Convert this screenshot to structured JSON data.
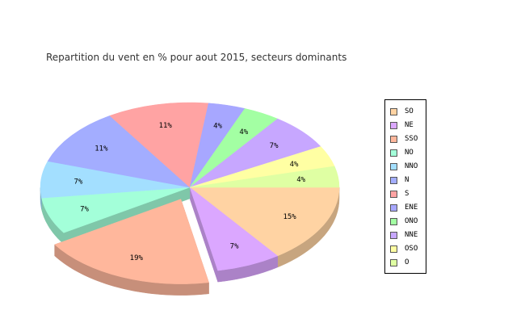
{
  "chart_data": {
    "type": "pie",
    "title": "Repartition du vent en % pour aout 2015, secteurs dominants",
    "three_d": true,
    "exploded_slice": "SSO",
    "legend_placement": "right",
    "slices": [
      {
        "name": "SO",
        "value": 15,
        "label": "15%",
        "color": "#FFD3A3"
      },
      {
        "name": "NE",
        "value": 7,
        "label": "7%",
        "color": "#DBA7FF"
      },
      {
        "name": "SSO",
        "value": 19,
        "label": "19%",
        "color": "#FFB79C"
      },
      {
        "name": "NO",
        "value": 7,
        "label": "7%",
        "color": "#A3FFD9"
      },
      {
        "name": "NNO",
        "value": 7,
        "label": "7%",
        "color": "#A3DFFF"
      },
      {
        "name": "N",
        "value": 11,
        "label": "11%",
        "color": "#A3ADFF"
      },
      {
        "name": "S",
        "value": 11,
        "label": "11%",
        "color": "#FFA3A3"
      },
      {
        "name": "ENE",
        "value": 4,
        "label": "4%",
        "color": "#A7A7FF"
      },
      {
        "name": "ONO",
        "value": 4,
        "label": "4%",
        "color": "#A3FFA3"
      },
      {
        "name": "NNE",
        "value": 7,
        "label": "7%",
        "color": "#C7A7FF"
      },
      {
        "name": "OSO",
        "value": 4,
        "label": "4%",
        "color": "#FFFFA3"
      },
      {
        "name": "O",
        "value": 4,
        "label": "4%",
        "color": "#DFFFA3"
      }
    ]
  }
}
